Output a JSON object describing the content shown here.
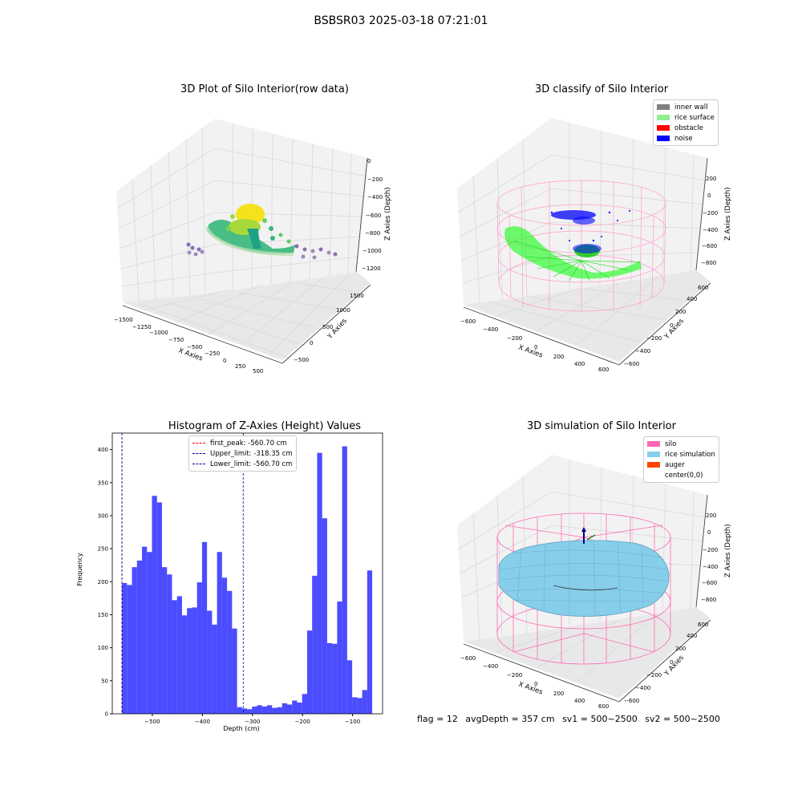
{
  "suptitle": "BSBSR03 2025-03-18 07:21:01",
  "footer": {
    "flag": "flag = 12",
    "avg_depth": "avgDepth = 357 cm",
    "sv1": "sv1 = 500~2500",
    "sv2": "sv2 = 500~2500"
  },
  "chart_data": [
    {
      "type": "scatter",
      "title": "3D Plot of Silo Interior(row data)",
      "xlabel": "X Axies",
      "ylabel": "Y Axies",
      "zlabel": "Z Axies (Depth)",
      "x_ticks": [
        "−1500",
        "−1250",
        "−1000",
        "−750",
        "−500",
        "−250",
        "0",
        "250",
        "500"
      ],
      "y_ticks": [
        "−500",
        "0",
        "500",
        "1000",
        "1500"
      ],
      "z_ticks": [
        "0",
        "−200",
        "−400",
        "−600",
        "−800",
        "−1000",
        "−1200"
      ],
      "colors": [
        "#440154",
        "#31688e",
        "#35b779",
        "#fde725"
      ]
    },
    {
      "type": "scatter",
      "title": "3D classify of Silo Interior",
      "xlabel": "X Axies",
      "ylabel": "Y Axies",
      "zlabel": "Z Axies (Depth)",
      "x_ticks": [
        "−600",
        "−400",
        "−200",
        "0",
        "200",
        "400",
        "600"
      ],
      "y_ticks": [
        "−600",
        "−400",
        "−200",
        "0",
        "200",
        "400",
        "600"
      ],
      "z_ticks": [
        "200",
        "0",
        "−200",
        "−400",
        "−600",
        "−800"
      ],
      "legend": [
        {
          "label": "inner wall",
          "color": "#808080"
        },
        {
          "label": "rice surface",
          "color": "#90ee90"
        },
        {
          "label": "obstacle",
          "color": "#ff0000"
        },
        {
          "label": "noise",
          "color": "#0000ff"
        }
      ],
      "legend_position": "top-right"
    },
    {
      "type": "bar",
      "title": "Histogram of Z-Axies (Height) Values",
      "xlabel": "Depth (cm)",
      "ylabel": "Frequency",
      "xlim": [
        -580,
        -40
      ],
      "ylim": [
        0,
        425
      ],
      "x_ticks": [
        -500,
        -400,
        -300,
        -200,
        -100
      ],
      "x_tick_labels": [
        "−500",
        "−400",
        "−300",
        "−200",
        "−100"
      ],
      "y_ticks": [
        0,
        50,
        100,
        150,
        200,
        250,
        300,
        350,
        400
      ],
      "bin_start": -560.7,
      "bin_width": 10,
      "values": [
        198,
        195,
        222,
        232,
        253,
        245,
        330,
        320,
        222,
        211,
        172,
        178,
        149,
        160,
        161,
        199,
        260,
        156,
        135,
        245,
        206,
        186,
        129,
        10,
        8,
        7,
        11,
        13,
        11,
        13,
        9,
        10,
        16,
        14,
        20,
        17,
        30,
        126,
        209,
        395,
        296,
        107,
        106,
        170,
        405,
        81,
        25,
        24,
        36,
        217
      ],
      "bar_color": "#0000ff",
      "lines": [
        {
          "label": "first_peak: -560.70 cm",
          "x": -560.7,
          "color": "#ff0000"
        },
        {
          "label": "Upper_limit: -318.35 cm",
          "x": -318.35,
          "color": "#0000aa"
        },
        {
          "label": "Lower_limit: -560.70 cm",
          "x": -560.7,
          "color": "#0000aa"
        }
      ],
      "legend_position": "top-center"
    },
    {
      "type": "surface",
      "title": "3D simulation of Silo Interior",
      "xlabel": "X Axies",
      "ylabel": "Y Axies",
      "zlabel": "Z Axies (Depth)",
      "x_ticks": [
        "−600",
        "−400",
        "−200",
        "0",
        "200",
        "400",
        "600"
      ],
      "y_ticks": [
        "−600",
        "−400",
        "−200",
        "0",
        "200",
        "400",
        "600"
      ],
      "z_ticks": [
        "200",
        "0",
        "−200",
        "−400",
        "−600",
        "−800"
      ],
      "legend": [
        {
          "label": "silo",
          "color": "#ff69b4"
        },
        {
          "label": "rice simulation",
          "color": "#87ceeb"
        },
        {
          "label": "auger",
          "color": "#ff4500"
        },
        {
          "label": "center(0,0)",
          "color": "#ffffff"
        }
      ],
      "legend_position": "top-right"
    }
  ]
}
